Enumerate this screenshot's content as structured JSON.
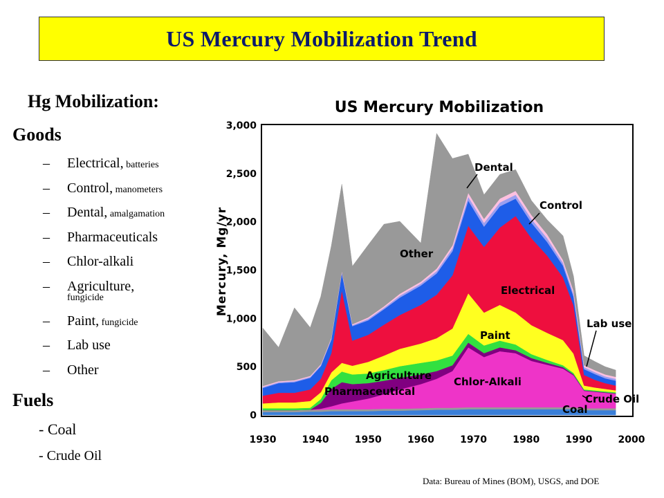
{
  "slide": {
    "title": "US Mercury Mobilization Trend",
    "hg_heading": "Hg Mobilization:",
    "goods_heading": "Goods",
    "goods": [
      {
        "label": "Electrical,",
        "note": " batteries"
      },
      {
        "label": "Control,",
        "note": " manometers"
      },
      {
        "label": "Dental,",
        "note": " amalgamation"
      },
      {
        "label": "Pharmaceuticals",
        "note": ""
      },
      {
        "label": "Chlor-alkali",
        "note": ""
      },
      {
        "label": "Agriculture,",
        "note": "fungicide"
      },
      {
        "label": "Paint,",
        "note": " fungicide"
      },
      {
        "label": "Lab use",
        "note": ""
      },
      {
        "label": "Other",
        "note": ""
      }
    ],
    "fuels_heading": "Fuels",
    "fuels": [
      "- Coal",
      "- Crude Oil"
    ],
    "source": "Data: Bureau of Mines (BOM), USGS, and DOE"
  },
  "chart_data": {
    "type": "area",
    "stacked": true,
    "title": "US Mercury Mobilization",
    "ylabel": "Mercury, Mg/yr",
    "xlabel": "",
    "xlim": [
      1930,
      2000
    ],
    "ylim": [
      0,
      3000
    ],
    "x_ticks": [
      "1930",
      "1940",
      "1950",
      "1960",
      "1970",
      "1980",
      "1990",
      "2000"
    ],
    "y_ticks": [
      "0",
      "500",
      "1,000",
      "1,500",
      "2,000",
      "2,500",
      "3,000"
    ],
    "x": [
      1930,
      1933,
      1936,
      1939,
      1941,
      1943,
      1945,
      1947,
      1950,
      1953,
      1956,
      1960,
      1963,
      1966,
      1969,
      1972,
      1975,
      1978,
      1981,
      1984,
      1987,
      1989,
      1991,
      1993,
      1995,
      1997
    ],
    "series": [
      {
        "name": "Coal",
        "color": "#3a7fd8",
        "values": [
          30,
          30,
          30,
          35,
          35,
          40,
          40,
          40,
          40,
          45,
          45,
          50,
          55,
          55,
          60,
          60,
          60,
          60,
          60,
          60,
          60,
          60,
          50,
          50,
          50,
          50
        ]
      },
      {
        "name": "Crude Oil",
        "color": "#9a9a9a",
        "values": [
          20,
          20,
          20,
          20,
          20,
          20,
          20,
          20,
          20,
          20,
          20,
          20,
          20,
          20,
          20,
          20,
          20,
          20,
          20,
          20,
          20,
          20,
          20,
          20,
          20,
          20
        ]
      },
      {
        "name": "Chlor-Alkali",
        "color": "#ee34c8",
        "values": [
          0,
          0,
          0,
          0,
          10,
          30,
          60,
          80,
          110,
          150,
          200,
          250,
          300,
          380,
          620,
          520,
          580,
          560,
          480,
          440,
          400,
          330,
          180,
          170,
          160,
          150
        ]
      },
      {
        "name": "Pharmaceutical",
        "color": "#800080",
        "values": [
          0,
          0,
          0,
          0,
          60,
          180,
          220,
          180,
          160,
          140,
          120,
          100,
          80,
          60,
          50,
          40,
          40,
          30,
          30,
          20,
          15,
          10,
          5,
          5,
          5,
          5
        ]
      },
      {
        "name": "Agriculture",
        "color": "#32e040",
        "values": [
          20,
          20,
          20,
          20,
          40,
          90,
          110,
          100,
          100,
          110,
          120,
          120,
          110,
          100,
          90,
          80,
          70,
          60,
          40,
          30,
          20,
          15,
          10,
          10,
          10,
          10
        ]
      },
      {
        "name": "Paint",
        "color": "#ffff20",
        "values": [
          50,
          60,
          60,
          70,
          70,
          80,
          90,
          90,
          120,
          150,
          180,
          200,
          230,
          280,
          420,
          340,
          370,
          330,
          300,
          280,
          260,
          200,
          40,
          30,
          25,
          20
        ]
      },
      {
        "name": "Electrical",
        "color": "#ee0f3e",
        "values": [
          80,
          100,
          100,
          120,
          140,
          200,
          750,
          260,
          280,
          320,
          350,
          400,
          450,
          550,
          700,
          680,
          800,
          1000,
          900,
          800,
          650,
          500,
          110,
          80,
          60,
          50
        ]
      },
      {
        "name": "Lab use",
        "color": "#1e5de8",
        "values": [
          80,
          100,
          110,
          120,
          130,
          140,
          180,
          150,
          150,
          160,
          180,
          200,
          220,
          250,
          260,
          210,
          220,
          180,
          160,
          140,
          120,
          90,
          60,
          60,
          50,
          50
        ]
      },
      {
        "name": "Control",
        "color": "#9b9ff0",
        "values": [
          10,
          10,
          10,
          10,
          10,
          10,
          10,
          10,
          15,
          15,
          20,
          20,
          25,
          30,
          40,
          40,
          40,
          40,
          40,
          40,
          30,
          30,
          20,
          20,
          20,
          20
        ]
      },
      {
        "name": "Dental",
        "color": "#ffc0e0",
        "values": [
          10,
          10,
          10,
          10,
          10,
          10,
          10,
          10,
          15,
          15,
          20,
          20,
          25,
          30,
          40,
          40,
          40,
          40,
          40,
          40,
          30,
          30,
          20,
          20,
          20,
          20
        ]
      },
      {
        "name": "Other",
        "color": "#999999",
        "values": [
          600,
          350,
          750,
          500,
          700,
          950,
          900,
          600,
          750,
          850,
          750,
          400,
          1400,
          900,
          400,
          250,
          250,
          220,
          150,
          150,
          250,
          150,
          100,
          90,
          80,
          70
        ]
      }
    ],
    "annotations": [
      {
        "text": "Dental",
        "points_to": "Dental"
      },
      {
        "text": "Control",
        "points_to": "Control"
      },
      {
        "text": "Other",
        "points_to": "Other"
      },
      {
        "text": "Electrical",
        "points_to": "Electrical"
      },
      {
        "text": "Lab use",
        "points_to": "Lab use"
      },
      {
        "text": "Paint",
        "points_to": "Paint"
      },
      {
        "text": "Agriculture",
        "points_to": "Agriculture"
      },
      {
        "text": "Chlor-Alkali",
        "points_to": "Chlor-Alkali"
      },
      {
        "text": "Pharmaceutical",
        "points_to": "Pharmaceutical"
      },
      {
        "text": "Crude Oil",
        "points_to": "Crude Oil"
      },
      {
        "text": "Coal",
        "points_to": "Coal"
      }
    ]
  }
}
